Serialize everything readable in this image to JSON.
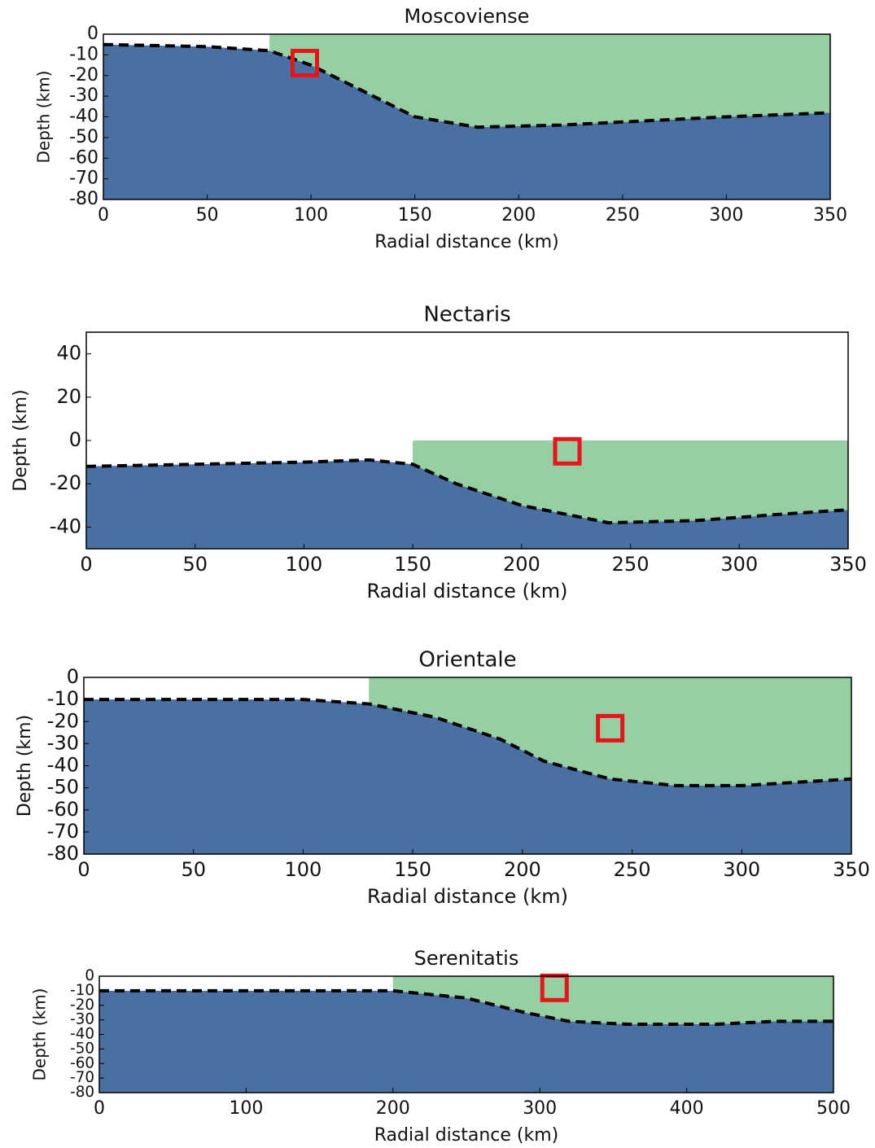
{
  "chart_data": [
    {
      "type": "line",
      "title": "Moscoviense",
      "xlabel": "Radial distance (km)",
      "ylabel": "Depth (km)",
      "xlim": [
        0,
        350
      ],
      "ylim": [
        -80,
        0
      ],
      "xticks": [
        0,
        50,
        100,
        150,
        200,
        250,
        300,
        350
      ],
      "yticks": [
        0,
        -10,
        -20,
        -30,
        -40,
        -50,
        -60,
        -70,
        -80
      ],
      "series": [
        {
          "color": "#000000",
          "dashed": true,
          "x": [
            0,
            50,
            80,
            100,
            120,
            150,
            180,
            220,
            260,
            300,
            350
          ],
          "values": [
            -5,
            -6,
            -8,
            -15,
            -25,
            -40,
            -45,
            -44,
            -42,
            -40,
            -38
          ]
        },
        {
          "color": "#e8141b",
          "marker": "square",
          "x": [
            97
          ],
          "values": [
            -14
          ]
        }
      ]
    },
    {
      "type": "line",
      "title": "Nectaris",
      "xlabel": "Radial distance (km)",
      "ylabel": "Depth (km)",
      "xlim": [
        0,
        350
      ],
      "ylim": [
        -50,
        50
      ],
      "xticks": [
        0,
        50,
        100,
        150,
        200,
        250,
        300,
        350
      ],
      "yticks": [
        -40,
        -20,
        0,
        20,
        40
      ],
      "series": [
        {
          "color": "#000000",
          "dashed": true,
          "x": [
            0,
            50,
            100,
            130,
            150,
            170,
            200,
            240,
            280,
            320,
            350
          ],
          "values": [
            -12,
            -11,
            -10,
            -9,
            -11,
            -20,
            -30,
            -38,
            -37,
            -34,
            -32
          ]
        },
        {
          "color": "#e8141b",
          "marker": "square",
          "x": [
            221
          ],
          "values": [
            -5
          ]
        }
      ]
    },
    {
      "type": "line",
      "title": "Orientale",
      "xlabel": "Radial distance (km)",
      "ylabel": "Depth (km)",
      "xlim": [
        0,
        350
      ],
      "ylim": [
        -80,
        0
      ],
      "xticks": [
        0,
        50,
        100,
        150,
        200,
        250,
        300,
        350
      ],
      "yticks": [
        0,
        -10,
        -20,
        -30,
        -40,
        -50,
        -60,
        -70,
        -80
      ],
      "series": [
        {
          "color": "#000000",
          "dashed": true,
          "x": [
            0,
            50,
            100,
            130,
            160,
            190,
            210,
            240,
            270,
            300,
            350
          ],
          "values": [
            -10,
            -10,
            -10,
            -12,
            -18,
            -28,
            -38,
            -46,
            -49,
            -49,
            -46
          ]
        },
        {
          "color": "#e8141b",
          "marker": "square",
          "x": [
            240
          ],
          "values": [
            -23
          ]
        }
      ]
    },
    {
      "type": "line",
      "title": "Serenitatis",
      "xlabel": "Radial distance (km)",
      "ylabel": "Depth (km)",
      "xlim": [
        0,
        500
      ],
      "ylim": [
        -80,
        0
      ],
      "xticks": [
        0,
        100,
        200,
        300,
        400,
        500
      ],
      "yticks": [
        0,
        -10,
        -20,
        -30,
        -40,
        -50,
        -60,
        -70,
        -80
      ],
      "series": [
        {
          "color": "#000000",
          "dashed": true,
          "x": [
            0,
            100,
            200,
            250,
            290,
            320,
            360,
            420,
            460,
            500
          ],
          "values": [
            -10,
            -10,
            -10,
            -15,
            -25,
            -31,
            -33,
            -33,
            -31,
            -31
          ]
        },
        {
          "color": "#e8141b",
          "marker": "square",
          "x": [
            310
          ],
          "values": [
            -8
          ]
        }
      ]
    }
  ]
}
